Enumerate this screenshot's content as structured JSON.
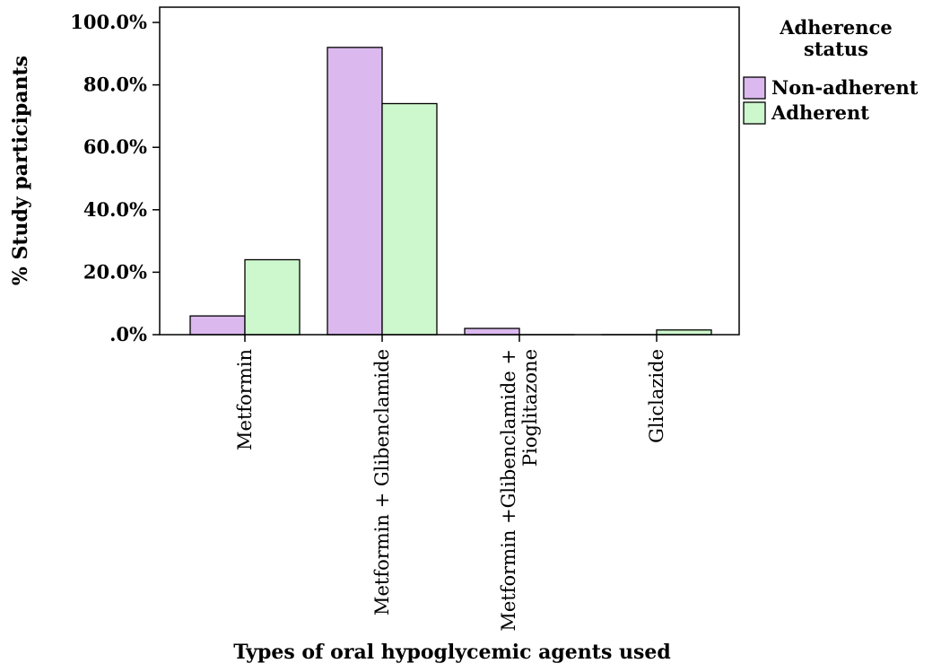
{
  "chart_data": {
    "type": "bar",
    "title": "",
    "xlabel": "Types of oral hypoglycemic agents used",
    "ylabel": "% Study participants",
    "ylim": [
      0,
      100
    ],
    "yticks": [
      0,
      20,
      40,
      60,
      80,
      100
    ],
    "ytick_labels": [
      ".0%",
      "20.0%",
      "40.0%",
      "60.0%",
      "80.0%",
      "100.0%"
    ],
    "categories": [
      [
        "Metformin"
      ],
      [
        "Metformin + Glibenclamide"
      ],
      [
        "Metformin +Glibenclamide +",
        "Pioglitazone"
      ],
      [
        "Gliclazide"
      ]
    ],
    "series": [
      {
        "name": "Non-adherent",
        "values": [
          6.0,
          92.0,
          2.0,
          0.0
        ],
        "color": "#dbb9ef"
      },
      {
        "name": "Adherent",
        "values": [
          24.0,
          74.0,
          0.0,
          1.5
        ],
        "color": "#cdf7cd"
      }
    ],
    "grid": false,
    "legend": {
      "title_lines": [
        "Adherence",
        "status"
      ],
      "placement": "right"
    }
  }
}
